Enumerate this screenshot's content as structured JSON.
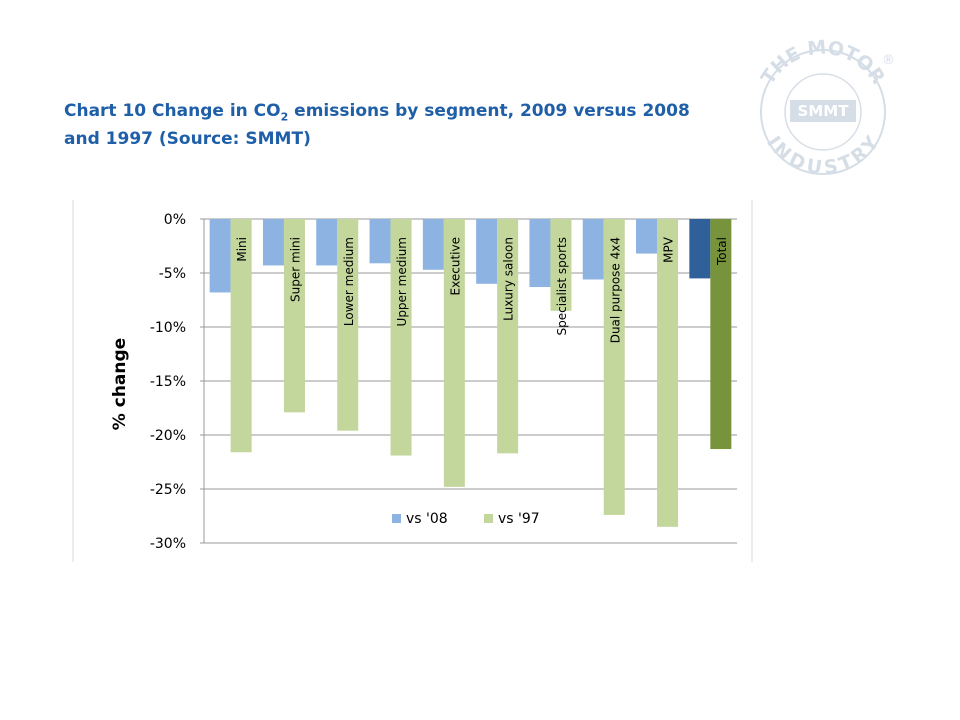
{
  "chart_data": {
    "type": "bar",
    "title": [
      "Chart 10 Change in CO",
      "2",
      " emissions by segment, 2009 versus 2008 and 1997 (Source: SMMT)"
    ],
    "ylabel": "% change",
    "categories": [
      "Mini",
      "Super mini",
      "Lower medium",
      "Upper medium",
      "Executive",
      "Luxury saloon",
      "Specialist sports",
      "Dual purpose 4x4",
      "MPV",
      "Total"
    ],
    "series": [
      {
        "name": "vs '08",
        "color": "#8db3e2",
        "colors": [
          "#8db3e2",
          "#8db3e2",
          "#8db3e2",
          "#8db3e2",
          "#8db3e2",
          "#8db3e2",
          "#8db3e2",
          "#8db3e2",
          "#8db3e2",
          "#30609a"
        ],
        "values": [
          -6.8,
          -4.3,
          -4.3,
          -4.1,
          -4.7,
          -6.0,
          -6.3,
          -5.6,
          -3.2,
          -5.5
        ]
      },
      {
        "name": "vs '97",
        "color": "#c3d69b",
        "colors": [
          "#c3d69b",
          "#c3d69b",
          "#c3d69b",
          "#c3d69b",
          "#c3d69b",
          "#c3d69b",
          "#c3d69b",
          "#c3d69b",
          "#c3d69b",
          "#77933c"
        ],
        "values": [
          -21.6,
          -17.9,
          -19.6,
          -21.9,
          -24.8,
          -21.7,
          -8.5,
          -27.4,
          -28.5,
          -21.3
        ]
      }
    ],
    "ylim": [
      -30,
      0
    ],
    "yticks": [
      {
        "value": 0,
        "label": "0%"
      },
      {
        "value": -5,
        "label": "-5%"
      },
      {
        "value": -10,
        "label": "-10%"
      },
      {
        "value": -15,
        "label": "-15%"
      },
      {
        "value": -20,
        "label": "-20%"
      },
      {
        "value": -25,
        "label": "-25%"
      },
      {
        "value": -30,
        "label": "-30%"
      }
    ],
    "grid": true,
    "legend": "bottom",
    "logo": {
      "top": "THE MOTOR",
      "bottom": "INDUSTRY",
      "center": "SMMT",
      "mark": "®"
    }
  }
}
